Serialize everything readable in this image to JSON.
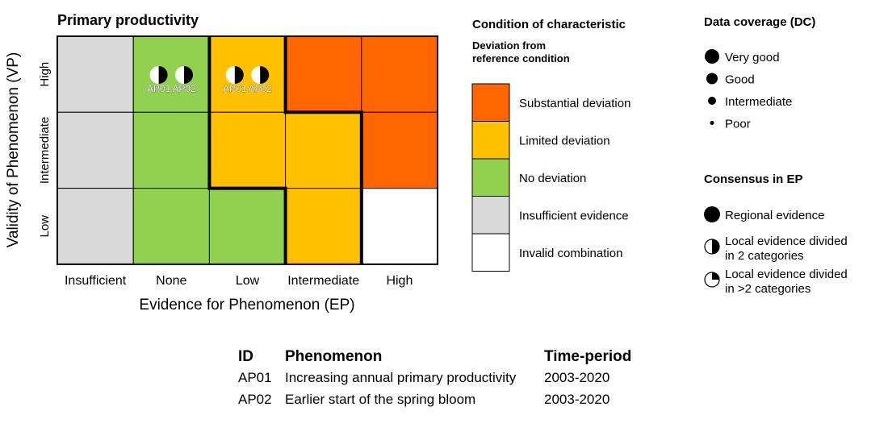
{
  "chart_data": {
    "type": "heatmap",
    "title": "Primary productivity",
    "xlabel": "Evidence for Phenomenon (EP)",
    "ylabel": "Validity of Phenomenon (VP)",
    "x_categories": [
      "Insufficient",
      "None",
      "Low",
      "Intermediate",
      "High"
    ],
    "y_categories": [
      "High",
      "Intermediate",
      "Low"
    ],
    "cells": [
      [
        "insufficient",
        "none",
        "limited",
        "substantial",
        "substantial"
      ],
      [
        "insufficient",
        "none",
        "limited",
        "limited",
        "substantial"
      ],
      [
        "insufficient",
        "none",
        "none",
        "limited",
        "invalid"
      ]
    ],
    "points": [
      {
        "id": "AP01",
        "x": "None",
        "y": "High",
        "consensus": "local-2",
        "coverage": "good"
      },
      {
        "id": "AP02",
        "x": "None",
        "y": "High",
        "consensus": "local-2",
        "coverage": "good"
      },
      {
        "id": "AP01",
        "x": "Low",
        "y": "High",
        "consensus": "local-2",
        "coverage": "good"
      },
      {
        "id": "AP02",
        "x": "Low",
        "y": "High",
        "consensus": "local-2",
        "coverage": "good"
      }
    ]
  },
  "colors": {
    "substantial": "#FF6600",
    "limited": "#FFC000",
    "none": "#92D050",
    "insufficient": "#D9D9D9",
    "invalid": "#FFFFFF"
  },
  "condition_legend": {
    "title": "Condition of characteristic",
    "subtitle_1": "Deviation from",
    "subtitle_2": "reference condition",
    "items": [
      {
        "key": "substantial",
        "label": "Substantial deviation"
      },
      {
        "key": "limited",
        "label": "Limited deviation"
      },
      {
        "key": "none",
        "label": "No deviation"
      },
      {
        "key": "insufficient",
        "label": "Insufficient evidence"
      },
      {
        "key": "invalid",
        "label": "Invalid combination"
      }
    ]
  },
  "coverage_legend": {
    "title": "Data coverage (DC)",
    "items": [
      "Very good",
      "Good",
      "Intermediate",
      "Poor"
    ]
  },
  "consensus_legend": {
    "title": "Consensus in EP",
    "items": [
      {
        "line1": "Regional evidence",
        "line2": ""
      },
      {
        "line1": "Local evidence divided",
        "line2": "in 2 categories"
      },
      {
        "line1": "Local evidence divided",
        "line2": "in >2 categories"
      }
    ]
  },
  "table": {
    "headers": [
      "ID",
      "Phenomenon",
      "Time-period"
    ],
    "rows": [
      [
        "AP01",
        "Increasing annual primary productivity",
        "2003-2020"
      ],
      [
        "AP02",
        "Earlier start of the spring bloom",
        "2003-2020"
      ]
    ]
  }
}
